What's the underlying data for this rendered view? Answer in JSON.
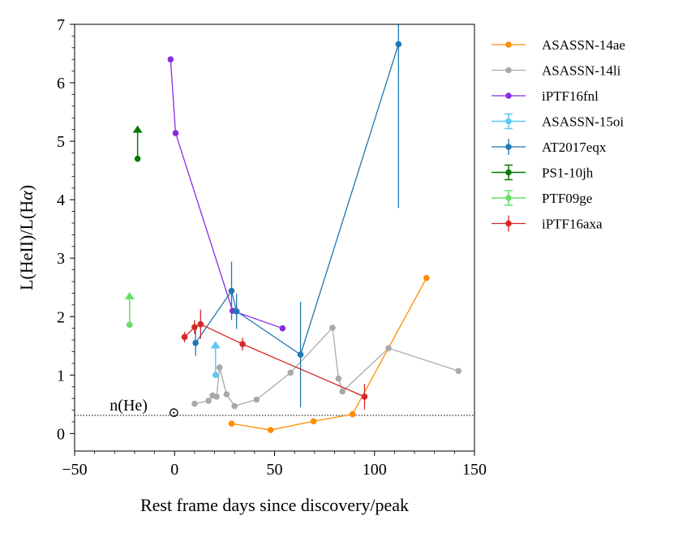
{
  "chart_data": {
    "type": "scatter",
    "xlabel": "Rest frame days since discovery/peak",
    "ylabel": "L(HeII)/L(Hα)",
    "ylabel_main": "L(HeII)/L(H",
    "ylabel_greek": "α",
    "ylabel_close": ")",
    "xlim": [
      -50,
      150
    ],
    "ylim": [
      -0.3,
      7
    ],
    "xticks": [
      -50,
      0,
      50,
      100,
      150
    ],
    "xtick_labels": [
      "−50",
      "0",
      "50",
      "100",
      "150"
    ],
    "yticks": [
      0,
      1,
      2,
      3,
      4,
      5,
      6,
      7
    ],
    "ytick_labels": [
      "0",
      "1",
      "2",
      "3",
      "4",
      "5",
      "6",
      "7"
    ],
    "legend_position": "outside right",
    "reference_line": {
      "y": 0.31,
      "style": "dotted",
      "label": "n(He)",
      "label_symbol": "⊙",
      "label_x": -30
    },
    "series": [
      {
        "name": "ASASSN-14ae",
        "color": "#ff8c00",
        "connected": true,
        "marker": "circle",
        "points": [
          {
            "x": 28.5,
            "y": 0.17
          },
          {
            "x": 48,
            "y": 0.06
          },
          {
            "x": 69.5,
            "y": 0.21
          },
          {
            "x": 89,
            "y": 0.33
          },
          {
            "x": 126,
            "y": 2.66
          }
        ]
      },
      {
        "name": "ASASSN-14li",
        "color": "#a9a9a9",
        "connected": true,
        "marker": "circle",
        "points": [
          {
            "x": 10,
            "y": 0.51
          },
          {
            "x": 17,
            "y": 0.56
          },
          {
            "x": 19,
            "y": 0.65
          },
          {
            "x": 21,
            "y": 0.63
          },
          {
            "x": 22.5,
            "y": 1.13
          },
          {
            "x": 26,
            "y": 0.67
          },
          {
            "x": 30,
            "y": 0.47
          },
          {
            "x": 41,
            "y": 0.58
          },
          {
            "x": 58,
            "y": 1.04
          },
          {
            "x": 79,
            "y": 1.81
          },
          {
            "x": 82,
            "y": 0.94
          },
          {
            "x": 84,
            "y": 0.72
          },
          {
            "x": 107,
            "y": 1.46
          },
          {
            "x": 142,
            "y": 1.07
          }
        ]
      },
      {
        "name": "iPTF16fnl",
        "color": "#8a2be2",
        "connected": true,
        "marker": "circle",
        "points": [
          {
            "x": -2,
            "y": 6.4
          },
          {
            "x": 0.5,
            "y": 5.14
          },
          {
            "x": 29,
            "y": 2.1
          },
          {
            "x": 54,
            "y": 1.8
          }
        ]
      },
      {
        "name": "ASASSN-15oi",
        "color": "#5bc8f5",
        "connected": false,
        "marker": "errorbar",
        "points": [
          {
            "x": 20.5,
            "y": 1.0,
            "arrow_to": 1.58
          }
        ]
      },
      {
        "name": "AT2017eqx",
        "color": "#1f77b4",
        "connected": true,
        "marker": "circle",
        "points": [
          {
            "x": 10.5,
            "y": 1.55,
            "err": 0.22
          },
          {
            "x": 28.5,
            "y": 2.44,
            "err": 0.5
          },
          {
            "x": 31,
            "y": 2.09,
            "err": 0.3
          },
          {
            "x": 63,
            "y": 1.35,
            "err": 0.9
          },
          {
            "x": 112,
            "y": 6.66,
            "err": 2.8
          }
        ]
      },
      {
        "name": "PS1-10jh",
        "color": "#007a00",
        "connected": false,
        "marker": "errorbar",
        "points": [
          {
            "x": -18.5,
            "y": 4.7,
            "arrow_to": 5.27
          }
        ]
      },
      {
        "name": "PTF09ge",
        "color": "#66dd66",
        "connected": false,
        "marker": "errorbar",
        "points": [
          {
            "x": -22.5,
            "y": 1.86,
            "arrow_to": 2.42
          }
        ]
      },
      {
        "name": "iPTF16axa",
        "color": "#d62728",
        "connected": true,
        "marker": "circle",
        "points": [
          {
            "x": 5,
            "y": 1.65,
            "err": 0.09
          },
          {
            "x": 10,
            "y": 1.82,
            "err": 0.12
          },
          {
            "x": 13,
            "y": 1.87,
            "err": 0.25
          },
          {
            "x": 34,
            "y": 1.53,
            "err": 0.11
          },
          {
            "x": 95,
            "y": 0.63,
            "err": 0.22
          }
        ]
      }
    ]
  }
}
